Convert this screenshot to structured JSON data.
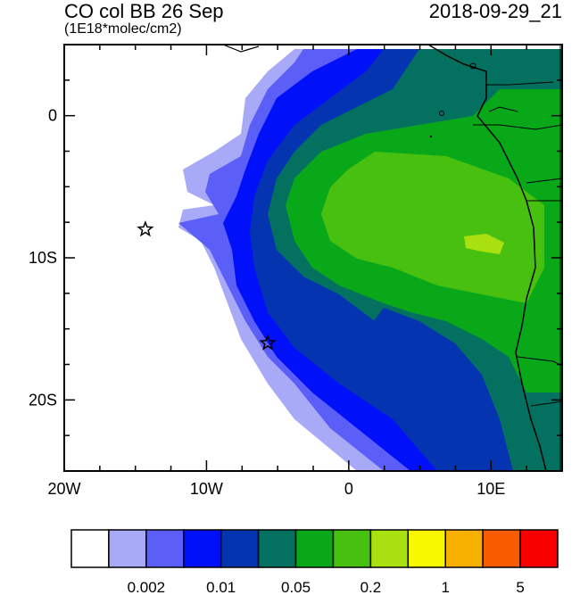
{
  "title": "CO col BB 26 Sep",
  "datetime": "2018-09-29_21",
  "units": "(1E18*molec/cm2)",
  "axes": {
    "x_ticks": [
      {
        "value": -20,
        "label": "20W"
      },
      {
        "value": -10,
        "label": "10W"
      },
      {
        "value": 0,
        "label": "0"
      },
      {
        "value": 10,
        "label": "10E"
      }
    ],
    "y_ticks": [
      {
        "value": 0,
        "label": "0"
      },
      {
        "value": -10,
        "label": "10S"
      },
      {
        "value": -20,
        "label": "20S"
      }
    ],
    "lon_range": [
      -20,
      15
    ],
    "lat_range": [
      -25,
      5
    ]
  },
  "markers": [
    {
      "name": "star-marker-1",
      "lon": -14.3,
      "lat": -8.0
    },
    {
      "name": "star-marker-2",
      "lon": -5.7,
      "lat": -16.0
    }
  ],
  "colorbar": {
    "colors": [
      "#ffffff",
      "#a8aaf8",
      "#5c5ef8",
      "#0010f8",
      "#0434b0",
      "#047060",
      "#08a818",
      "#48c010",
      "#a8e010",
      "#f8f800",
      "#f8b000",
      "#f85c00",
      "#f80000"
    ],
    "labels": [
      {
        "boundary": 2,
        "text": "0.002"
      },
      {
        "boundary": 4,
        "text": "0.01"
      },
      {
        "boundary": 6,
        "text": "0.05"
      },
      {
        "boundary": 8,
        "text": "0.2"
      },
      {
        "boundary": 10,
        "text": "1"
      },
      {
        "boundary": 12,
        "text": "5"
      }
    ]
  }
}
